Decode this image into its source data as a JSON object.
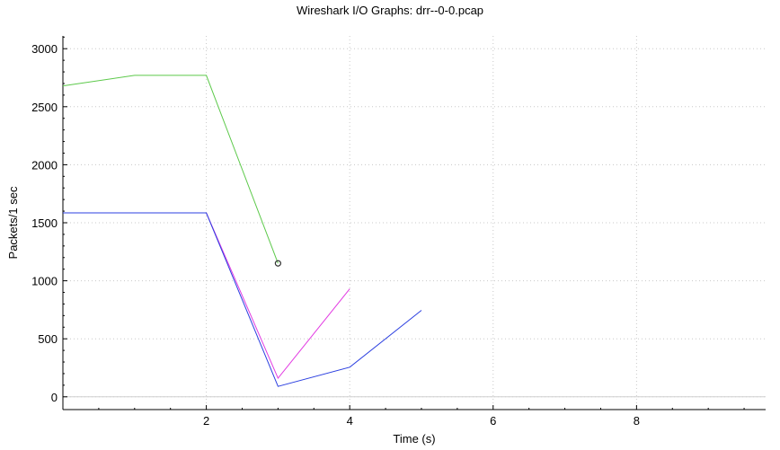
{
  "chart_data": {
    "type": "line",
    "title": "Wireshark I/O Graphs: drr--0-0.pcap",
    "xlabel": "Time (s)",
    "ylabel": "Packets/1 sec",
    "xlim": [
      0,
      9.8
    ],
    "ylim": [
      -110,
      3110
    ],
    "x_ticks": [
      2,
      4,
      6,
      8
    ],
    "y_ticks": [
      0,
      500,
      1000,
      1500,
      2000,
      2500,
      3000
    ],
    "grid": true,
    "legend": "none",
    "series": [
      {
        "color": "#5cc94a",
        "x": [
          0,
          1,
          2,
          3
        ],
        "y": [
          2680,
          2770,
          2770,
          1150
        ],
        "end_marker": true
      },
      {
        "color": "#e23ae2",
        "x": [
          0,
          1,
          2,
          3,
          4
        ],
        "y": [
          1585,
          1585,
          1585,
          160,
          930
        ]
      },
      {
        "color": "#2b3fe0",
        "x": [
          0,
          1,
          2,
          3,
          4,
          5
        ],
        "y": [
          1585,
          1585,
          1585,
          90,
          255,
          745
        ]
      }
    ]
  }
}
